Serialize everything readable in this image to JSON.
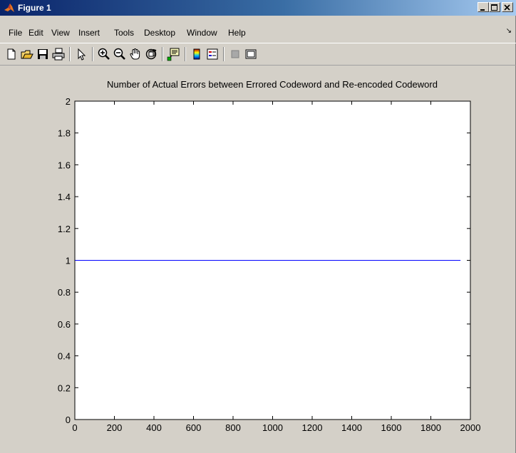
{
  "window": {
    "title": "Figure 1",
    "buttons": [
      "minimize",
      "maximize",
      "close"
    ]
  },
  "menu": {
    "items": [
      {
        "label": "File"
      },
      {
        "label": "Edit"
      },
      {
        "label": "View"
      },
      {
        "label": "Insert"
      },
      {
        "label": "Tools"
      },
      {
        "label": "Desktop"
      },
      {
        "label": "Window"
      },
      {
        "label": "Help"
      }
    ]
  },
  "toolbar": {
    "icons": [
      "new-figure-icon",
      "open-file-icon",
      "save-icon",
      "print-icon",
      "edit-plot-arrow-icon",
      "zoom-in-icon",
      "zoom-out-icon",
      "pan-hand-icon",
      "rotate-3d-icon",
      "data-cursor-icon",
      "colorbar-icon",
      "legend-icon",
      "hide-plot-tools-icon",
      "show-plot-tools-icon"
    ]
  },
  "chart_data": {
    "type": "line",
    "title": "Number of Actual Errors between Errored Codeword and Re-encoded Codeword",
    "xlabel": "",
    "ylabel": "",
    "xlim": [
      0,
      2000
    ],
    "ylim": [
      0,
      2
    ],
    "xticks": [
      "0",
      "200",
      "400",
      "600",
      "800",
      "1000",
      "1200",
      "1400",
      "1600",
      "1800",
      "2000"
    ],
    "yticks": [
      "0",
      "0.2",
      "0.4",
      "0.6",
      "0.8",
      "1",
      "1.2",
      "1.4",
      "1.6",
      "1.8",
      "2"
    ],
    "grid": false,
    "series": [
      {
        "color": "#0000ff",
        "x": [
          1,
          1950
        ],
        "y": [
          1,
          1
        ]
      }
    ]
  }
}
